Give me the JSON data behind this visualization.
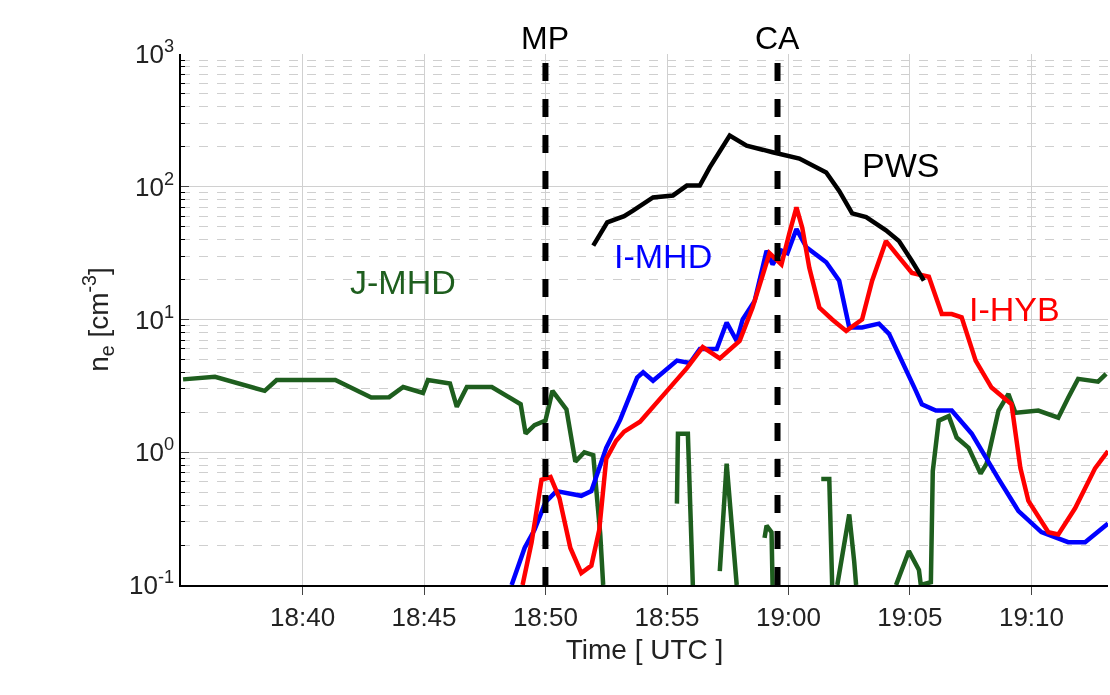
{
  "chart_data": {
    "type": "line",
    "xlabel": "Time [ UTC ]",
    "ylabel": "n$_{e}$ [cm$^{-3}$]",
    "log": "y",
    "grid": true,
    "legend": false,
    "line_style": "solid",
    "marker": "none",
    "xlim": [
      18.5833,
      19.2192
    ],
    "xticks": [
      {
        "value": 18.6667,
        "label": "18:40"
      },
      {
        "value": 18.75,
        "label": "18:45"
      },
      {
        "value": 18.8333,
        "label": "18:50"
      },
      {
        "value": 18.9167,
        "label": "18:55"
      },
      {
        "value": 19.0,
        "label": "19:00"
      },
      {
        "value": 19.0833,
        "label": "19:05"
      },
      {
        "value": 19.1667,
        "label": "19:10"
      }
    ],
    "ylim": [
      0.1,
      1000
    ],
    "yticks": [
      {
        "value": 0.1,
        "label": "10$^{-1}$"
      },
      {
        "value": 1,
        "label": "10$^{0}$"
      },
      {
        "value": 10,
        "label": "10$^{1}$"
      },
      {
        "value": 100,
        "label": "10$^{2}$"
      },
      {
        "value": 1000,
        "label": "10$^{3}$"
      }
    ],
    "ref_lines": [
      {
        "axis": "x",
        "value": 18.8333,
        "label": "MP",
        "color": "#000000",
        "line_style": "dashed"
      },
      {
        "axis": "x",
        "value": 18.9925,
        "label": "CA",
        "color": "#000000",
        "line_style": "dashed"
      }
    ],
    "series": [
      {
        "name": "J-MHD",
        "color": "#1e5e1e",
        "x": [
          18.5847,
          18.6066,
          18.6407,
          18.6489,
          18.6892,
          18.7138,
          18.7261,
          18.7357,
          18.7493,
          18.7527,
          18.7678,
          18.7725,
          18.7794,
          18.7965,
          18.8163,
          18.8197,
          18.8258,
          18.8333,
          18.8381,
          18.8477,
          18.8538,
          18.86,
          18.8661,
          18.8709,
          18.8729,
          18.9,
          18.9235,
          18.9242,
          18.931,
          18.9344,
          18.945,
          18.9529,
          18.9576,
          18.9645,
          18.975,
          18.9836,
          18.985,
          18.9884,
          18.9891,
          19.01,
          19.0225,
          19.028,
          19.03,
          19.032,
          19.0335,
          19.0417,
          19.0451,
          19.0464,
          19.06,
          19.0738,
          19.0826,
          19.0895,
          19.0908,
          19.0977,
          19.099,
          19.1031,
          19.11,
          19.1154,
          19.1236,
          19.1318,
          19.1359,
          19.1441,
          19.1509,
          19.1557,
          19.1714,
          19.1851,
          19.1919,
          19.1987,
          19.2124,
          19.2179
        ],
        "values": [
          3.54,
          3.7,
          2.9,
          3.5,
          3.5,
          2.58,
          2.6,
          3.1,
          2.8,
          3.5,
          3.3,
          2.2,
          3.1,
          3.1,
          2.3,
          1.38,
          1.6,
          1.73,
          2.9,
          2.1,
          0.85,
          1.0,
          0.95,
          0.24,
          0.1,
          null,
          0.41,
          1.38,
          1.38,
          0.1,
          null,
          0.127,
          0.82,
          0.1,
          null,
          0.226,
          0.28,
          0.25,
          0.1,
          null,
          0.63,
          0.63,
          0.1,
          null,
          0.1,
          0.34,
          0.15,
          0.1,
          null,
          0.1,
          0.18,
          0.13,
          0.1,
          0.105,
          0.72,
          1.73,
          1.87,
          1.29,
          1.08,
          0.69,
          0.82,
          2.06,
          2.75,
          1.98,
          2.06,
          1.82,
          2.57,
          3.57,
          3.4,
          3.9
        ]
      },
      {
        "name": "I-MHD",
        "color": "#0000ff",
        "x": [
          18.8101,
          18.819,
          18.8258,
          18.8333,
          18.8408,
          18.8579,
          18.8648,
          18.875,
          18.8846,
          18.8962,
          18.9003,
          18.9071,
          18.9235,
          18.9324,
          18.9392,
          18.9508,
          18.9576,
          18.9645,
          18.9686,
          18.9768,
          18.985,
          18.9891,
          18.9952,
          18.9993,
          19.0055,
          19.0123,
          19.0259,
          19.0348,
          19.0417,
          19.0505,
          19.0621,
          19.069,
          19.0874,
          19.0915,
          19.1011,
          19.112,
          19.1257,
          19.1441,
          19.1578,
          19.1735,
          19.1919,
          19.2035,
          19.2192
        ],
        "values": [
          0.1,
          0.19,
          0.26,
          0.42,
          0.51,
          0.47,
          0.51,
          1.08,
          1.76,
          3.65,
          4.0,
          3.46,
          4.9,
          4.7,
          6.0,
          6.0,
          9.5,
          6.9,
          10,
          13.8,
          33,
          26,
          33,
          31.6,
          48,
          35,
          27,
          19.6,
          8.7,
          8.7,
          9.3,
          7.8,
          2.9,
          2.3,
          2.06,
          2.06,
          1.38,
          0.63,
          0.36,
          0.25,
          0.21,
          0.21,
          0.29
        ]
      },
      {
        "name": "I-HYB",
        "color": "#ff0000",
        "x": [
          18.8176,
          18.8238,
          18.8306,
          18.8368,
          18.8429,
          18.8504,
          18.8579,
          18.8648,
          18.8702,
          18.875,
          18.8818,
          18.8873,
          18.8982,
          18.9167,
          18.9303,
          18.9412,
          18.9529,
          18.9665,
          18.9754,
          18.987,
          18.9952,
          19.0007,
          19.0055,
          19.0095,
          19.0143,
          19.0212,
          19.03,
          19.0396,
          19.0505,
          19.0574,
          19.0669,
          19.0758,
          19.0847,
          19.0963,
          19.1052,
          19.112,
          19.1188,
          19.1284,
          19.1393,
          19.153,
          19.1591,
          19.1646,
          19.1783,
          19.1851,
          19.1967,
          19.2104,
          19.2192
        ],
        "values": [
          0.1,
          0.21,
          0.62,
          0.65,
          0.45,
          0.19,
          0.123,
          0.14,
          0.26,
          0.89,
          1.22,
          1.43,
          1.7,
          2.9,
          4.3,
          6.2,
          5.1,
          6.9,
          12.3,
          31.6,
          26,
          45,
          70,
          49,
          24.5,
          12.3,
          10,
          8.2,
          10,
          19.6,
          39,
          29.5,
          22.4,
          21,
          11,
          11,
          10.4,
          4.9,
          3.07,
          2.3,
          0.76,
          0.43,
          0.25,
          0.24,
          0.38,
          0.76,
          1.02
        ]
      },
      {
        "name": "PWS",
        "color": "#000000",
        "x": [
          18.8661,
          18.8757,
          18.8873,
          18.8934,
          18.9071,
          18.9208,
          18.9303,
          18.9392,
          18.946,
          18.9597,
          18.9713,
          18.9891,
          19.0075,
          19.0259,
          19.0348,
          19.0437,
          19.0533,
          19.0669,
          19.0758,
          19.0847,
          19.0929
        ],
        "values": [
          36,
          54,
          60,
          66,
          83,
          86,
          102,
          102,
          140,
          243,
          204,
          182,
          163,
          128,
          93,
          63,
          59,
          47,
          39,
          27.6,
          19.6
        ]
      }
    ]
  }
}
